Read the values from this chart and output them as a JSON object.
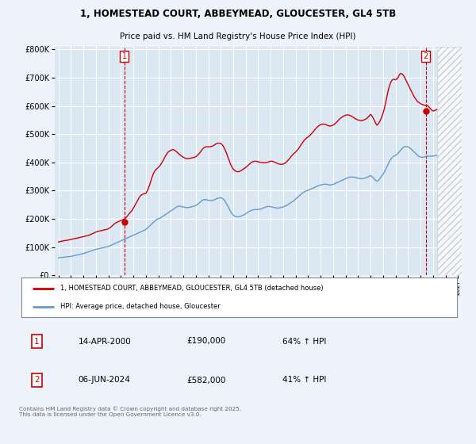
{
  "title": "1, HOMESTEAD COURT, ABBEYMEAD, GLOUCESTER, GL4 5TB",
  "subtitle": "Price paid vs. HM Land Registry's House Price Index (HPI)",
  "bg_color": "#eef2fa",
  "plot_bg_color": "#dbe8f4",
  "grid_color": "#ffffff",
  "red_color": "#cc0000",
  "blue_color": "#6699cc",
  "marker1_x": 2000.29,
  "marker1_y": 190000,
  "marker2_x": 2024.43,
  "marker2_y": 582000,
  "ylim": [
    0,
    810000
  ],
  "xlim": [
    1994.7,
    2027.3
  ],
  "yticks": [
    0,
    100000,
    200000,
    300000,
    400000,
    500000,
    600000,
    700000,
    800000
  ],
  "xticks": [
    1995,
    1996,
    1997,
    1998,
    1999,
    2000,
    2001,
    2002,
    2003,
    2004,
    2005,
    2006,
    2007,
    2008,
    2009,
    2010,
    2011,
    2012,
    2013,
    2014,
    2015,
    2016,
    2017,
    2018,
    2019,
    2020,
    2021,
    2022,
    2023,
    2024,
    2025,
    2026,
    2027
  ],
  "legend_label_red": "1, HOMESTEAD COURT, ABBEYMEAD, GLOUCESTER, GL4 5TB (detached house)",
  "legend_label_blue": "HPI: Average price, detached house, Gloucester",
  "table_rows": [
    {
      "num": "1",
      "date": "14-APR-2000",
      "price": "£190,000",
      "hpi": "64% ↑ HPI"
    },
    {
      "num": "2",
      "date": "06-JUN-2024",
      "price": "£582,000",
      "hpi": "41% ↑ HPI"
    }
  ],
  "footer": "Contains HM Land Registry data © Crown copyright and database right 2025.\nThis data is licensed under the Open Government Licence v3.0.",
  "hpi_x": [
    1995.0,
    1995.1,
    1995.2,
    1995.3,
    1995.4,
    1995.5,
    1995.6,
    1995.7,
    1995.8,
    1995.9,
    1996.0,
    1996.1,
    1996.2,
    1996.3,
    1996.4,
    1996.5,
    1996.6,
    1996.7,
    1996.8,
    1996.9,
    1997.0,
    1997.1,
    1997.2,
    1997.3,
    1997.4,
    1997.5,
    1997.6,
    1997.7,
    1997.8,
    1997.9,
    1998.0,
    1998.1,
    1998.2,
    1998.3,
    1998.4,
    1998.5,
    1998.6,
    1998.7,
    1998.8,
    1998.9,
    1999.0,
    1999.1,
    1999.2,
    1999.3,
    1999.4,
    1999.5,
    1999.6,
    1999.7,
    1999.8,
    1999.9,
    2000.0,
    2000.1,
    2000.2,
    2000.3,
    2000.4,
    2000.5,
    2000.6,
    2000.7,
    2000.8,
    2000.9,
    2001.0,
    2001.1,
    2001.2,
    2001.3,
    2001.4,
    2001.5,
    2001.6,
    2001.7,
    2001.8,
    2001.9,
    2002.0,
    2002.1,
    2002.2,
    2002.3,
    2002.4,
    2002.5,
    2002.6,
    2002.7,
    2002.8,
    2002.9,
    2003.0,
    2003.1,
    2003.2,
    2003.3,
    2003.4,
    2003.5,
    2003.6,
    2003.7,
    2003.8,
    2003.9,
    2004.0,
    2004.1,
    2004.2,
    2004.3,
    2004.4,
    2004.5,
    2004.6,
    2004.7,
    2004.8,
    2004.9,
    2005.0,
    2005.1,
    2005.2,
    2005.3,
    2005.4,
    2005.5,
    2005.6,
    2005.7,
    2005.8,
    2005.9,
    2006.0,
    2006.1,
    2006.2,
    2006.3,
    2006.4,
    2006.5,
    2006.6,
    2006.7,
    2006.8,
    2006.9,
    2007.0,
    2007.1,
    2007.2,
    2007.3,
    2007.4,
    2007.5,
    2007.6,
    2007.7,
    2007.8,
    2007.9,
    2008.0,
    2008.1,
    2008.2,
    2008.3,
    2008.4,
    2008.5,
    2008.6,
    2008.7,
    2008.8,
    2008.9,
    2009.0,
    2009.1,
    2009.2,
    2009.3,
    2009.4,
    2009.5,
    2009.6,
    2009.7,
    2009.8,
    2009.9,
    2010.0,
    2010.1,
    2010.2,
    2010.3,
    2010.4,
    2010.5,
    2010.6,
    2010.7,
    2010.8,
    2010.9,
    2011.0,
    2011.1,
    2011.2,
    2011.3,
    2011.4,
    2011.5,
    2011.6,
    2011.7,
    2011.8,
    2011.9,
    2012.0,
    2012.1,
    2012.2,
    2012.3,
    2012.4,
    2012.5,
    2012.6,
    2012.7,
    2012.8,
    2012.9,
    2013.0,
    2013.1,
    2013.2,
    2013.3,
    2013.4,
    2013.5,
    2013.6,
    2013.7,
    2013.8,
    2013.9,
    2014.0,
    2014.1,
    2014.2,
    2014.3,
    2014.4,
    2014.5,
    2014.6,
    2014.7,
    2014.8,
    2014.9,
    2015.0,
    2015.1,
    2015.2,
    2015.3,
    2015.4,
    2015.5,
    2015.6,
    2015.7,
    2015.8,
    2015.9,
    2016.0,
    2016.1,
    2016.2,
    2016.3,
    2016.4,
    2016.5,
    2016.6,
    2016.7,
    2016.8,
    2016.9,
    2017.0,
    2017.1,
    2017.2,
    2017.3,
    2017.4,
    2017.5,
    2017.6,
    2017.7,
    2017.8,
    2017.9,
    2018.0,
    2018.1,
    2018.2,
    2018.3,
    2018.4,
    2018.5,
    2018.6,
    2018.7,
    2018.8,
    2018.9,
    2019.0,
    2019.1,
    2019.2,
    2019.3,
    2019.4,
    2019.5,
    2019.6,
    2019.7,
    2019.8,
    2019.9,
    2020.0,
    2020.1,
    2020.2,
    2020.3,
    2020.4,
    2020.5,
    2020.6,
    2020.7,
    2020.8,
    2020.9,
    2021.0,
    2021.1,
    2021.2,
    2021.3,
    2021.4,
    2021.5,
    2021.6,
    2021.7,
    2021.8,
    2021.9,
    2022.0,
    2022.1,
    2022.2,
    2022.3,
    2022.4,
    2022.5,
    2022.6,
    2022.7,
    2022.8,
    2022.9,
    2023.0,
    2023.1,
    2023.2,
    2023.3,
    2023.4,
    2023.5,
    2023.6,
    2023.7,
    2023.8,
    2023.9,
    2024.0,
    2024.1,
    2024.2,
    2024.3,
    2024.4,
    2024.5,
    2024.6,
    2024.7,
    2024.8,
    2024.9,
    2025.0,
    2025.1,
    2025.2,
    2025.3
  ],
  "hpi_y": [
    62000,
    62500,
    63000,
    63500,
    64000,
    64500,
    65000,
    65500,
    66000,
    66500,
    67000,
    68000,
    69000,
    70000,
    71000,
    72000,
    73000,
    74000,
    75000,
    76000,
    77000,
    78500,
    80000,
    81500,
    83000,
    84500,
    86000,
    87500,
    89000,
    90500,
    92000,
    93000,
    94000,
    95000,
    96000,
    97000,
    98000,
    99000,
    100000,
    101000,
    102000,
    104000,
    106000,
    108000,
    110000,
    112000,
    114000,
    116000,
    118000,
    120000,
    122000,
    124000,
    126000,
    128000,
    130000,
    132000,
    134000,
    136000,
    138000,
    140000,
    142000,
    144000,
    146000,
    148000,
    150000,
    152000,
    154000,
    156000,
    158000,
    160000,
    163000,
    167000,
    171000,
    175000,
    179000,
    183000,
    187000,
    191000,
    195000,
    199000,
    200000,
    202000,
    204000,
    207000,
    210000,
    213000,
    216000,
    219000,
    222000,
    225000,
    228000,
    231000,
    234000,
    237000,
    240000,
    243000,
    245000,
    245000,
    244000,
    243000,
    242000,
    241000,
    240000,
    240000,
    240000,
    241000,
    242000,
    243000,
    244000,
    245000,
    247000,
    250000,
    253000,
    257000,
    261000,
    265000,
    267000,
    268000,
    268000,
    267000,
    266000,
    265000,
    265000,
    265000,
    266000,
    268000,
    270000,
    272000,
    273000,
    274000,
    275000,
    273000,
    270000,
    265000,
    258000,
    250000,
    242000,
    233000,
    225000,
    218000,
    213000,
    210000,
    208000,
    207000,
    207000,
    208000,
    209000,
    211000,
    213000,
    215000,
    218000,
    221000,
    224000,
    227000,
    229000,
    231000,
    232000,
    233000,
    233000,
    233000,
    233000,
    234000,
    235000,
    236000,
    238000,
    240000,
    242000,
    243000,
    244000,
    244000,
    243000,
    242000,
    241000,
    240000,
    239000,
    238000,
    238000,
    239000,
    240000,
    241000,
    242000,
    244000,
    246000,
    248000,
    251000,
    254000,
    257000,
    260000,
    263000,
    266000,
    270000,
    274000,
    278000,
    282000,
    286000,
    290000,
    293000,
    296000,
    298000,
    300000,
    301000,
    303000,
    305000,
    307000,
    309000,
    311000,
    313000,
    315000,
    317000,
    319000,
    320000,
    321000,
    322000,
    323000,
    323000,
    322000,
    321000,
    320000,
    320000,
    321000,
    322000,
    324000,
    326000,
    328000,
    330000,
    332000,
    334000,
    336000,
    338000,
    340000,
    342000,
    344000,
    346000,
    347000,
    348000,
    348000,
    348000,
    347000,
    346000,
    345000,
    344000,
    343000,
    342000,
    342000,
    343000,
    344000,
    345000,
    347000,
    349000,
    351000,
    353000,
    350000,
    346000,
    341000,
    336000,
    333000,
    335000,
    340000,
    346000,
    352000,
    358000,
    366000,
    375000,
    384000,
    393000,
    402000,
    410000,
    416000,
    420000,
    423000,
    425000,
    428000,
    432000,
    437000,
    443000,
    448000,
    452000,
    455000,
    456000,
    456000,
    455000,
    452000,
    449000,
    445000,
    440000,
    436000,
    432000,
    428000,
    424000,
    421000,
    419000,
    418000,
    418000,
    419000,
    420000,
    421000,
    422000,
    422000,
    422000,
    422000,
    422000,
    423000,
    424000,
    425000
  ],
  "price_x": [
    1995.0,
    1995.1,
    1995.2,
    1995.3,
    1995.4,
    1995.5,
    1995.6,
    1995.7,
    1995.8,
    1995.9,
    1996.0,
    1996.1,
    1996.2,
    1996.3,
    1996.4,
    1996.5,
    1996.6,
    1996.7,
    1996.8,
    1996.9,
    1997.0,
    1997.1,
    1997.2,
    1997.3,
    1997.4,
    1997.5,
    1997.6,
    1997.7,
    1997.8,
    1997.9,
    1998.0,
    1998.1,
    1998.2,
    1998.3,
    1998.4,
    1998.5,
    1998.6,
    1998.7,
    1998.8,
    1998.9,
    1999.0,
    1999.1,
    1999.2,
    1999.3,
    1999.4,
    1999.5,
    1999.6,
    1999.7,
    1999.8,
    1999.9,
    2000.0,
    2000.1,
    2000.2,
    2000.3,
    2000.4,
    2000.5,
    2000.6,
    2000.7,
    2000.8,
    2000.9,
    2001.0,
    2001.1,
    2001.2,
    2001.3,
    2001.4,
    2001.5,
    2001.6,
    2001.7,
    2001.8,
    2001.9,
    2002.0,
    2002.1,
    2002.2,
    2002.3,
    2002.4,
    2002.5,
    2002.6,
    2002.7,
    2002.8,
    2002.9,
    2003.0,
    2003.1,
    2003.2,
    2003.3,
    2003.4,
    2003.5,
    2003.6,
    2003.7,
    2003.8,
    2003.9,
    2004.0,
    2004.1,
    2004.2,
    2004.3,
    2004.4,
    2004.5,
    2004.6,
    2004.7,
    2004.8,
    2004.9,
    2005.0,
    2005.1,
    2005.2,
    2005.3,
    2005.4,
    2005.5,
    2005.6,
    2005.7,
    2005.8,
    2005.9,
    2006.0,
    2006.1,
    2006.2,
    2006.3,
    2006.4,
    2006.5,
    2006.6,
    2006.7,
    2006.8,
    2006.9,
    2007.0,
    2007.1,
    2007.2,
    2007.3,
    2007.4,
    2007.5,
    2007.6,
    2007.7,
    2007.8,
    2007.9,
    2008.0,
    2008.1,
    2008.2,
    2008.3,
    2008.4,
    2008.5,
    2008.6,
    2008.7,
    2008.8,
    2008.9,
    2009.0,
    2009.1,
    2009.2,
    2009.3,
    2009.4,
    2009.5,
    2009.6,
    2009.7,
    2009.8,
    2009.9,
    2010.0,
    2010.1,
    2010.2,
    2010.3,
    2010.4,
    2010.5,
    2010.6,
    2010.7,
    2010.8,
    2010.9,
    2011.0,
    2011.1,
    2011.2,
    2011.3,
    2011.4,
    2011.5,
    2011.6,
    2011.7,
    2011.8,
    2011.9,
    2012.0,
    2012.1,
    2012.2,
    2012.3,
    2012.4,
    2012.5,
    2012.6,
    2012.7,
    2012.8,
    2012.9,
    2013.0,
    2013.1,
    2013.2,
    2013.3,
    2013.4,
    2013.5,
    2013.6,
    2013.7,
    2013.8,
    2013.9,
    2014.0,
    2014.1,
    2014.2,
    2014.3,
    2014.4,
    2014.5,
    2014.6,
    2014.7,
    2014.8,
    2014.9,
    2015.0,
    2015.1,
    2015.2,
    2015.3,
    2015.4,
    2015.5,
    2015.6,
    2015.7,
    2015.8,
    2015.9,
    2016.0,
    2016.1,
    2016.2,
    2016.3,
    2016.4,
    2016.5,
    2016.6,
    2016.7,
    2016.8,
    2016.9,
    2017.0,
    2017.1,
    2017.2,
    2017.3,
    2017.4,
    2017.5,
    2017.6,
    2017.7,
    2017.8,
    2017.9,
    2018.0,
    2018.1,
    2018.2,
    2018.3,
    2018.4,
    2018.5,
    2018.6,
    2018.7,
    2018.8,
    2018.9,
    2019.0,
    2019.1,
    2019.2,
    2019.3,
    2019.4,
    2019.5,
    2019.6,
    2019.7,
    2019.8,
    2019.9,
    2020.0,
    2020.1,
    2020.2,
    2020.3,
    2020.4,
    2020.5,
    2020.6,
    2020.7,
    2020.8,
    2020.9,
    2021.0,
    2021.1,
    2021.2,
    2021.3,
    2021.4,
    2021.5,
    2021.6,
    2021.7,
    2021.8,
    2021.9,
    2022.0,
    2022.1,
    2022.2,
    2022.3,
    2022.4,
    2022.5,
    2022.6,
    2022.7,
    2022.8,
    2022.9,
    2023.0,
    2023.1,
    2023.2,
    2023.3,
    2023.4,
    2023.5,
    2023.6,
    2023.7,
    2023.8,
    2023.9,
    2024.0,
    2024.1,
    2024.2,
    2024.3,
    2024.4,
    2024.5,
    2024.6,
    2024.7,
    2024.8,
    2024.9,
    2025.0,
    2025.1,
    2025.2,
    2025.3
  ],
  "price_y": [
    118000,
    119000,
    120000,
    121000,
    122000,
    123000,
    123500,
    124000,
    125000,
    126000,
    127000,
    128000,
    129000,
    130000,
    131000,
    132000,
    133000,
    134000,
    135000,
    136000,
    137000,
    138000,
    139000,
    140000,
    141000,
    143000,
    145000,
    147000,
    149000,
    151000,
    153000,
    155000,
    156000,
    157000,
    158000,
    159000,
    160000,
    161000,
    162000,
    163000,
    165000,
    168000,
    171000,
    175000,
    179000,
    183000,
    186000,
    188000,
    190000,
    192000,
    194000,
    196000,
    198000,
    200000,
    204000,
    209000,
    215000,
    220000,
    225000,
    230000,
    238000,
    246000,
    254000,
    262000,
    270000,
    278000,
    283000,
    286000,
    288000,
    289000,
    290000,
    298000,
    308000,
    320000,
    334000,
    348000,
    360000,
    368000,
    374000,
    378000,
    382000,
    387000,
    393000,
    400000,
    408000,
    417000,
    425000,
    432000,
    437000,
    440000,
    443000,
    445000,
    445000,
    443000,
    440000,
    436000,
    432000,
    428000,
    424000,
    421000,
    418000,
    416000,
    414000,
    413000,
    413000,
    414000,
    415000,
    416000,
    417000,
    418000,
    420000,
    424000,
    428000,
    433000,
    439000,
    445000,
    450000,
    453000,
    455000,
    455000,
    455000,
    455000,
    456000,
    457000,
    459000,
    462000,
    465000,
    467000,
    468000,
    468000,
    467000,
    463000,
    457000,
    449000,
    439000,
    427000,
    415000,
    403000,
    392000,
    383000,
    376000,
    372000,
    369000,
    367000,
    367000,
    368000,
    370000,
    373000,
    376000,
    379000,
    382000,
    386000,
    390000,
    394000,
    398000,
    401000,
    403000,
    404000,
    404000,
    403000,
    402000,
    401000,
    400000,
    399000,
    399000,
    399000,
    399000,
    400000,
    401000,
    403000,
    404000,
    404000,
    403000,
    401000,
    399000,
    397000,
    395000,
    394000,
    393000,
    393000,
    394000,
    396000,
    399000,
    403000,
    408000,
    413000,
    419000,
    424000,
    429000,
    433000,
    437000,
    442000,
    447000,
    453000,
    460000,
    467000,
    473000,
    479000,
    483000,
    487000,
    490000,
    494000,
    498000,
    503000,
    508000,
    514000,
    519000,
    524000,
    528000,
    531000,
    534000,
    535000,
    536000,
    535000,
    534000,
    532000,
    530000,
    529000,
    529000,
    530000,
    532000,
    535000,
    539000,
    543000,
    548000,
    553000,
    557000,
    560000,
    563000,
    565000,
    567000,
    568000,
    568000,
    567000,
    565000,
    563000,
    560000,
    557000,
    554000,
    552000,
    550000,
    549000,
    548000,
    548000,
    549000,
    551000,
    553000,
    556000,
    560000,
    565000,
    570000,
    565000,
    558000,
    549000,
    539000,
    532000,
    535000,
    542000,
    551000,
    562000,
    574000,
    590000,
    610000,
    631000,
    652000,
    669000,
    682000,
    690000,
    694000,
    694000,
    693000,
    695000,
    700000,
    710000,
    715000,
    714000,
    710000,
    703000,
    694000,
    685000,
    676000,
    667000,
    658000,
    649000,
    640000,
    632000,
    625000,
    619000,
    614000,
    611000,
    608000,
    606000,
    604000,
    603000,
    602000,
    601000,
    600000,
    595000,
    590000,
    585000,
    582000,
    583000,
    585000,
    587000
  ]
}
